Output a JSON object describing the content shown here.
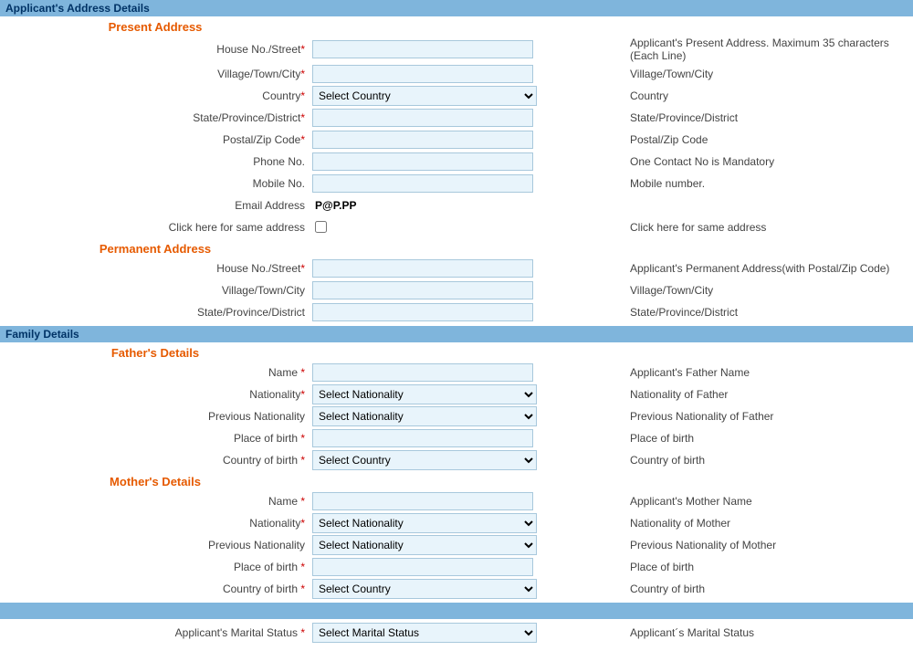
{
  "address_section": {
    "header": "Applicant's Address Details",
    "present": {
      "title": "Present Address",
      "house_label": "House No./Street",
      "house_help": "Applicant's Present Address. Maximum 35 characters (Each Line)",
      "village_label": "Village/Town/City",
      "village_help": "Village/Town/City",
      "country_label": "Country",
      "country_select": "Select Country",
      "country_help": "Country",
      "state_label": "State/Province/District",
      "state_help": "State/Province/District",
      "postal_label": "Postal/Zip Code",
      "postal_help": "Postal/Zip Code",
      "phone_label": "Phone No.",
      "phone_help": "One Contact No is Mandatory",
      "mobile_label": "Mobile No.",
      "mobile_help": "Mobile number.",
      "email_label": "Email Address",
      "email_value": "P@P.PP",
      "same_label": "Click here for same address",
      "same_help": "Click here for same address"
    },
    "permanent": {
      "title": "Permanent Address",
      "house_label": "House No./Street",
      "house_help": "Applicant's Permanent Address(with Postal/Zip Code)",
      "village_label": "Village/Town/City",
      "village_help": "Village/Town/City",
      "state_label": "State/Province/District",
      "state_help": "State/Province/District"
    }
  },
  "family_section": {
    "header": "Family Details",
    "father": {
      "title": "Father's Details",
      "name_label": "Name ",
      "name_help": "Applicant's Father Name",
      "nationality_label": "Nationality",
      "nationality_select": "Select Nationality",
      "nationality_help": "Nationality of Father",
      "prev_nat_label": "Previous Nationality",
      "prev_nat_select": "Select Nationality",
      "prev_nat_help": "Previous Nationality of Father",
      "pob_label": "Place of birth ",
      "pob_help": "Place of birth",
      "cob_label": "Country of birth ",
      "cob_select": "Select Country",
      "cob_help": "Country of birth"
    },
    "mother": {
      "title": "Mother's Details",
      "name_label": "Name ",
      "name_help": "Applicant's Mother Name",
      "nationality_label": "Nationality",
      "nationality_select": "Select Nationality",
      "nationality_help": "Nationality of Mother",
      "prev_nat_label": "Previous Nationality",
      "prev_nat_select": "Select Nationality",
      "prev_nat_help": "Previous Nationality of Mother",
      "pob_label": "Place of birth ",
      "pob_help": "Place of birth",
      "cob_label": "Country of birth ",
      "cob_select": "Select Country",
      "cob_help": "Country of birth"
    }
  },
  "marital_section": {
    "label": "Applicant's Marital Status ",
    "select": "Select Marital Status",
    "help": "Applicant´s Marital Status"
  },
  "asterisk": "*"
}
